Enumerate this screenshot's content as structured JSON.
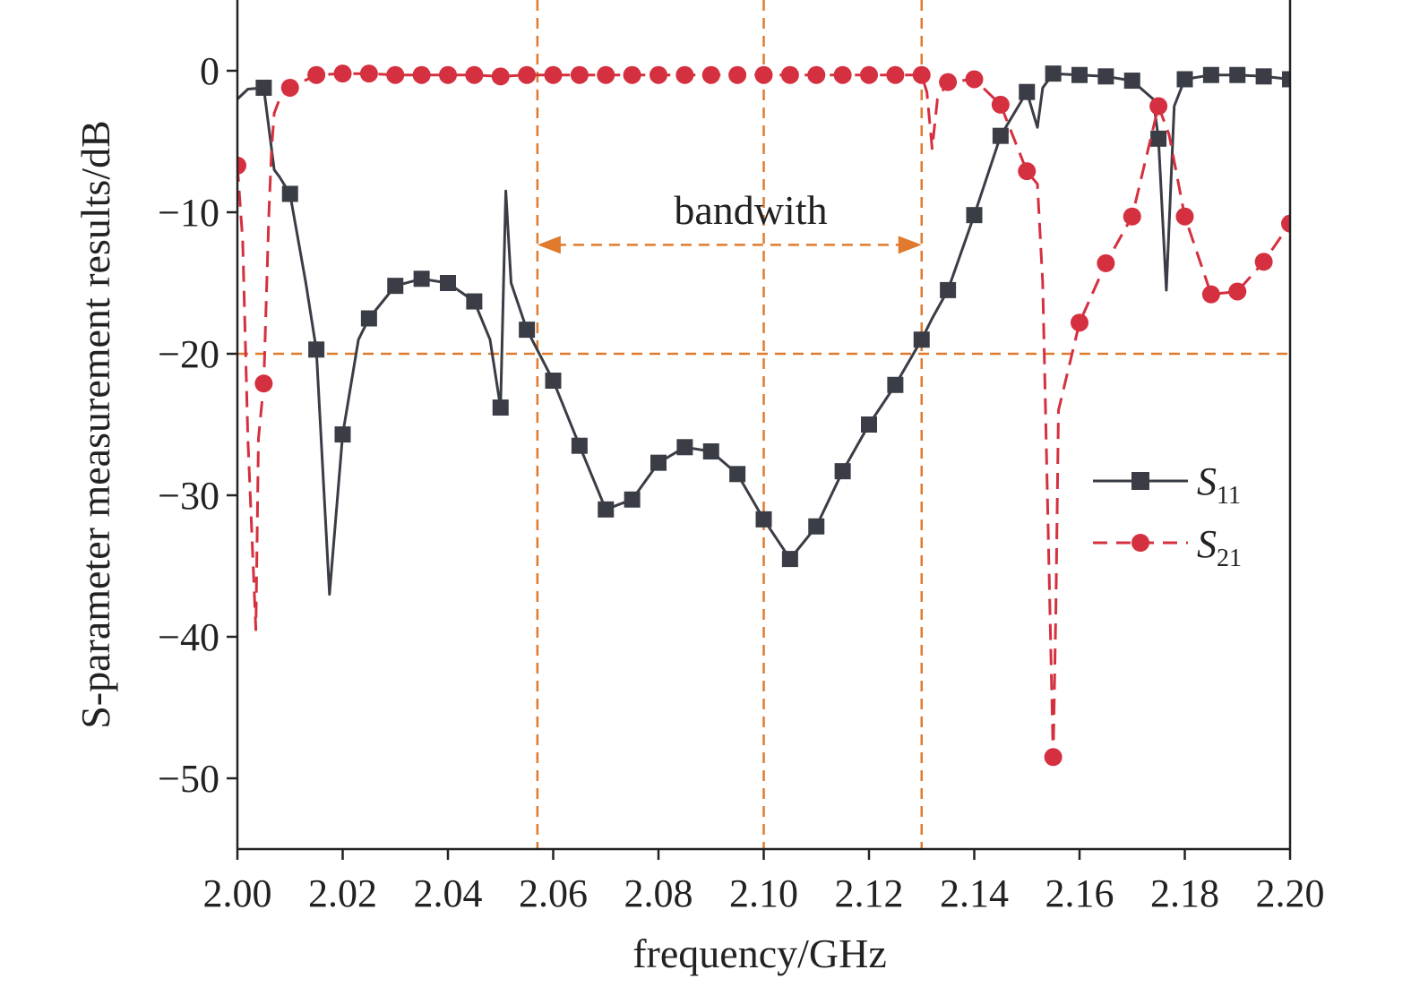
{
  "chart_data": {
    "type": "line",
    "xlabel": "frequency/GHz",
    "ylabel": "S-parameter measurement results/dB",
    "xlim": [
      2.0,
      2.2
    ],
    "ylim": [
      -55,
      5
    ],
    "xticks": [
      2.0,
      2.02,
      2.04,
      2.06,
      2.08,
      2.1,
      2.12,
      2.14,
      2.16,
      2.18,
      2.2
    ],
    "xtick_labels": [
      "2.00",
      "2.02",
      "2.04",
      "2.06",
      "2.08",
      "2.10",
      "2.12",
      "2.14",
      "2.16",
      "2.18",
      "2.20"
    ],
    "yticks": [
      0,
      -10,
      -20,
      -30,
      -40,
      -50
    ],
    "ytick_labels": [
      "0",
      "−10",
      "−20",
      "−30",
      "−40",
      "−50"
    ],
    "grid": false,
    "legend_position": "right",
    "annotation": "bandwith",
    "reference_lines": {
      "y": -20,
      "x": [
        2.057,
        2.1,
        2.13
      ],
      "color": "#e07a2e"
    },
    "bandwidth_arrow": {
      "from": 2.057,
      "to": 2.13,
      "y": -12.3
    },
    "series": [
      {
        "name": "S11",
        "name_main": "S",
        "name_sub": "11",
        "color": "#3a3d45",
        "style": "solid",
        "marker": "square",
        "x": [
          2.0,
          2.002,
          2.005,
          2.007,
          2.008,
          2.01,
          2.013,
          2.015,
          2.0175,
          2.02,
          2.023,
          2.025,
          2.03,
          2.035,
          2.04,
          2.045,
          2.048,
          2.05,
          2.051,
          2.052,
          2.055,
          2.06,
          2.065,
          2.07,
          2.075,
          2.08,
          2.085,
          2.09,
          2.095,
          2.1,
          2.105,
          2.11,
          2.115,
          2.12,
          2.125,
          2.13,
          2.132,
          2.135,
          2.14,
          2.145,
          2.15,
          2.152,
          2.153,
          2.155,
          2.16,
          2.165,
          2.17,
          2.174,
          2.175,
          2.1765,
          2.178,
          2.18,
          2.185,
          2.19,
          2.195,
          2.2
        ],
        "y": [
          -2.0,
          -1.3,
          -1.2,
          -7.0,
          -7.5,
          -8.7,
          -15.0,
          -19.7,
          -37.0,
          -25.7,
          -19.0,
          -17.5,
          -15.2,
          -14.7,
          -15.0,
          -16.3,
          -19.0,
          -23.8,
          -8.5,
          -15.0,
          -18.3,
          -21.9,
          -26.5,
          -31.0,
          -30.3,
          -27.7,
          -26.6,
          -26.9,
          -28.5,
          -31.7,
          -34.5,
          -32.2,
          -28.3,
          -25.0,
          -22.2,
          -19.0,
          -17.5,
          -15.5,
          -10.2,
          -4.6,
          -1.5,
          -4.0,
          -1.2,
          -0.2,
          -0.3,
          -0.4,
          -0.7,
          -2.0,
          -4.8,
          -15.5,
          -2.5,
          -0.6,
          -0.3,
          -0.3,
          -0.4,
          -0.6
        ],
        "markers_x": [
          2.005,
          2.01,
          2.015,
          2.02,
          2.025,
          2.03,
          2.035,
          2.04,
          2.045,
          2.05,
          2.055,
          2.06,
          2.065,
          2.07,
          2.075,
          2.08,
          2.085,
          2.09,
          2.095,
          2.1,
          2.105,
          2.11,
          2.115,
          2.12,
          2.125,
          2.13,
          2.135,
          2.14,
          2.145,
          2.15,
          2.155,
          2.16,
          2.165,
          2.17,
          2.175,
          2.18,
          2.185,
          2.19,
          2.195,
          2.2
        ],
        "markers_y": [
          -1.2,
          -8.7,
          -19.7,
          -25.7,
          -17.5,
          -15.2,
          -14.7,
          -15.0,
          -16.3,
          -23.8,
          -18.3,
          -21.9,
          -26.5,
          -31.0,
          -30.3,
          -27.7,
          -26.6,
          -26.9,
          -28.5,
          -31.7,
          -34.5,
          -32.2,
          -28.3,
          -25.0,
          -22.2,
          -19.0,
          -15.5,
          -10.2,
          -4.6,
          -1.5,
          -0.2,
          -0.3,
          -0.4,
          -0.7,
          -4.8,
          -0.6,
          -0.3,
          -0.3,
          -0.4,
          -0.6
        ]
      },
      {
        "name": "S21",
        "name_main": "S",
        "name_sub": "21",
        "color": "#d5303f",
        "style": "dashed",
        "marker": "circle",
        "x": [
          2.0,
          2.001,
          2.002,
          2.0035,
          2.004,
          2.005,
          2.006,
          2.0065,
          2.007,
          2.008,
          2.01,
          2.015,
          2.02,
          2.025,
          2.03,
          2.035,
          2.04,
          2.045,
          2.05,
          2.055,
          2.06,
          2.065,
          2.07,
          2.075,
          2.08,
          2.085,
          2.09,
          2.095,
          2.1,
          2.105,
          2.11,
          2.115,
          2.12,
          2.125,
          2.13,
          2.131,
          2.132,
          2.133,
          2.135,
          2.14,
          2.145,
          2.15,
          2.152,
          2.153,
          2.155,
          2.1555,
          2.156,
          2.16,
          2.165,
          2.17,
          2.175,
          2.177,
          2.18,
          2.185,
          2.19,
          2.195,
          2.2
        ],
        "y": [
          -6.7,
          -12.0,
          -26.0,
          -39.5,
          -26.0,
          -22.1,
          -10.0,
          -5.5,
          -3.0,
          -2.0,
          -1.2,
          -0.3,
          -0.2,
          -0.2,
          -0.3,
          -0.3,
          -0.3,
          -0.3,
          -0.4,
          -0.3,
          -0.3,
          -0.3,
          -0.3,
          -0.3,
          -0.3,
          -0.3,
          -0.3,
          -0.3,
          -0.3,
          -0.3,
          -0.3,
          -0.3,
          -0.3,
          -0.3,
          -0.3,
          -1.5,
          -5.5,
          -2.0,
          -0.8,
          -0.6,
          -2.4,
          -7.1,
          -8.0,
          -15.0,
          -48.5,
          -38.0,
          -24.0,
          -17.8,
          -13.6,
          -10.3,
          -2.5,
          -4.5,
          -10.3,
          -15.8,
          -15.6,
          -13.5,
          -10.8
        ],
        "markers_x": [
          2.0,
          2.005,
          2.01,
          2.015,
          2.02,
          2.025,
          2.03,
          2.035,
          2.04,
          2.045,
          2.05,
          2.055,
          2.06,
          2.065,
          2.07,
          2.075,
          2.08,
          2.085,
          2.09,
          2.095,
          2.1,
          2.105,
          2.11,
          2.115,
          2.12,
          2.125,
          2.13,
          2.135,
          2.14,
          2.145,
          2.15,
          2.155,
          2.16,
          2.165,
          2.17,
          2.175,
          2.18,
          2.185,
          2.19,
          2.195,
          2.2
        ],
        "markers_y": [
          -6.7,
          -22.1,
          -1.2,
          -0.3,
          -0.2,
          -0.2,
          -0.3,
          -0.3,
          -0.3,
          -0.3,
          -0.4,
          -0.3,
          -0.3,
          -0.3,
          -0.3,
          -0.3,
          -0.3,
          -0.3,
          -0.3,
          -0.3,
          -0.3,
          -0.3,
          -0.3,
          -0.3,
          -0.3,
          -0.3,
          -0.3,
          -0.8,
          -0.6,
          -2.4,
          -7.1,
          -48.5,
          -17.8,
          -13.6,
          -10.3,
          -2.5,
          -10.3,
          -15.8,
          -15.6,
          -13.5,
          -10.8
        ]
      }
    ]
  }
}
